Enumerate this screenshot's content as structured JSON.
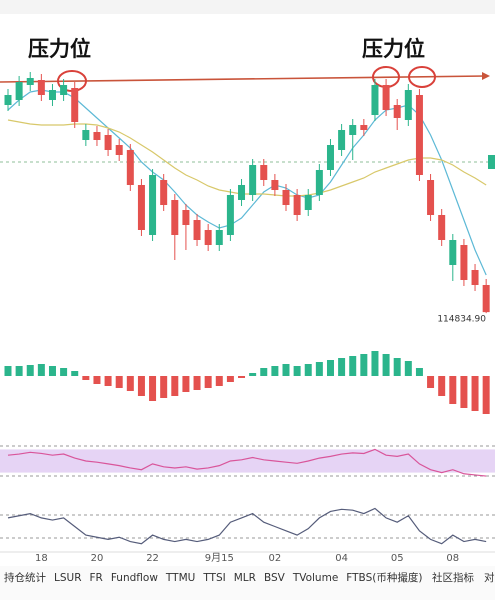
{
  "chart_data": [
    {
      "type": "candlestick",
      "annotations": [
        "压力位",
        "压力位"
      ],
      "price_label": {
        "value": 114834.9,
        "label": "114834.90"
      },
      "ylim": [
        114000,
        124800
      ],
      "up_color": "#2bb58c",
      "down_color": "#e4514e",
      "open": [
        123120,
        123320,
        123920,
        124120,
        123320,
        123520,
        123800,
        121720,
        122040,
        121920,
        121520,
        121320,
        119920,
        117920,
        120120,
        119320,
        118920,
        118520,
        118120,
        117520,
        117920,
        119320,
        119520,
        120720,
        120120,
        119720,
        119520,
        118920,
        119520,
        120520,
        121320,
        121920,
        122320,
        122720,
        123920,
        123120,
        122520,
        123520,
        120120,
        118720,
        116720,
        117520,
        116520,
        115920
      ],
      "high": [
        123760,
        124280,
        124440,
        124360,
        123960,
        124160,
        124040,
        122360,
        122280,
        122160,
        121760,
        121560,
        120160,
        120560,
        120360,
        119560,
        119160,
        118760,
        118360,
        118360,
        119760,
        120160,
        120960,
        120960,
        120360,
        119960,
        119760,
        119760,
        120760,
        121760,
        122360,
        122560,
        122560,
        124160,
        124160,
        123360,
        123960,
        123760,
        120360,
        118960,
        117960,
        117760,
        116760,
        116160
      ],
      "low": [
        122880,
        123080,
        123680,
        123280,
        123080,
        123280,
        122200,
        121480,
        121480,
        121080,
        120880,
        119680,
        117880,
        117680,
        118880,
        116920,
        117320,
        117480,
        117280,
        117280,
        117680,
        119080,
        119280,
        119880,
        119480,
        118880,
        118480,
        118680,
        119280,
        120280,
        121080,
        120920,
        121880,
        122480,
        122680,
        122120,
        122280,
        120080,
        118480,
        117480,
        116080,
        115880,
        115680,
        114700
      ],
      "close": [
        123520,
        124040,
        124200,
        123520,
        123720,
        123920,
        122440,
        122120,
        121720,
        121320,
        121120,
        119920,
        118120,
        120320,
        119120,
        117920,
        118320,
        117720,
        117520,
        118120,
        119520,
        119920,
        120720,
        120120,
        119720,
        119120,
        118720,
        119520,
        120520,
        121520,
        122120,
        122320,
        122120,
        123920,
        122920,
        122600,
        123720,
        120320,
        118720,
        117720,
        117720,
        116120,
        115920,
        114834.9
      ],
      "lines": [
        {
          "color": "#5db9d6",
          "values": [
            122920,
            123320,
            123640,
            123720,
            123640,
            123640,
            123400,
            123000,
            122600,
            122200,
            121800,
            121400,
            120840,
            120440,
            120120,
            119640,
            119120,
            118720,
            118440,
            118200,
            118320,
            118600,
            119120,
            119640,
            119920,
            119800,
            119520,
            119400,
            119520,
            120040,
            120720,
            121400,
            121920,
            122520,
            122920,
            123000,
            123120,
            122720,
            121920,
            120920,
            119720,
            118520,
            117320,
            116320
          ]
        },
        {
          "color": "#d8c86a",
          "values": [
            122520,
            122440,
            122360,
            122320,
            122320,
            122320,
            122360,
            122360,
            122320,
            122200,
            122040,
            121800,
            121520,
            121240,
            120920,
            120600,
            120320,
            120120,
            119880,
            119720,
            119640,
            119560,
            119560,
            119560,
            119520,
            119480,
            119480,
            119520,
            119600,
            119720,
            119880,
            120040,
            120200,
            120440,
            120600,
            120760,
            120920,
            121000,
            121000,
            120920,
            120720,
            120440,
            120200,
            119920
          ]
        }
      ],
      "xticks": [
        {
          "value": 3,
          "label": "18"
        },
        {
          "value": 8,
          "label": "20"
        },
        {
          "value": 13,
          "label": "22"
        },
        {
          "value": 19,
          "label": "9月15"
        },
        {
          "value": 24,
          "label": "02"
        },
        {
          "value": 30,
          "label": "04"
        },
        {
          "value": 35,
          "label": "05"
        },
        {
          "value": 40,
          "label": "08"
        }
      ]
    },
    {
      "type": "bar",
      "ylim": [
        -42,
        24
      ],
      "up_color": "#2bb58c",
      "down_color": "#e4514e",
      "values": [
        10,
        10,
        11,
        12,
        10,
        8,
        5,
        -4,
        -8,
        -10,
        -12,
        -15,
        -20,
        -25,
        -22,
        -20,
        -16,
        -14,
        -12,
        -10,
        -6,
        -2,
        3,
        8,
        10,
        12,
        10,
        12,
        14,
        16,
        18,
        20,
        22,
        25,
        22,
        18,
        15,
        8,
        -12,
        -20,
        -28,
        -32,
        -35,
        -38
      ]
    },
    {
      "type": "line",
      "ylim": [
        0,
        100
      ],
      "band": [
        30,
        70
      ],
      "band_color": "#e6d4f5",
      "color": "#d9559a",
      "values": [
        60,
        62,
        65,
        63,
        60,
        62,
        55,
        50,
        48,
        45,
        42,
        38,
        35,
        45,
        40,
        38,
        40,
        36,
        38,
        42,
        50,
        52,
        56,
        52,
        50,
        48,
        46,
        50,
        55,
        58,
        62,
        64,
        63,
        70,
        60,
        58,
        62,
        45,
        35,
        30,
        35,
        28,
        26,
        24
      ]
    },
    {
      "type": "line",
      "ylim": [
        0,
        100
      ],
      "color": "#555c7a",
      "values": [
        70,
        75,
        80,
        70,
        65,
        70,
        50,
        30,
        25,
        20,
        25,
        15,
        10,
        30,
        20,
        15,
        20,
        15,
        20,
        30,
        60,
        70,
        80,
        60,
        50,
        40,
        30,
        45,
        70,
        85,
        90,
        88,
        80,
        92,
        70,
        60,
        75,
        40,
        20,
        10,
        30,
        15,
        20,
        15
      ]
    }
  ],
  "toolbar": {
    "items": [
      "持仓统计",
      "LSUR",
      "FR",
      "Fundflow",
      "TTMU",
      "TTSI",
      "MLR",
      "BSV",
      "TVolume",
      "FTBS(币种撮度)"
    ],
    "right": [
      "社区指标",
      "对比"
    ]
  }
}
